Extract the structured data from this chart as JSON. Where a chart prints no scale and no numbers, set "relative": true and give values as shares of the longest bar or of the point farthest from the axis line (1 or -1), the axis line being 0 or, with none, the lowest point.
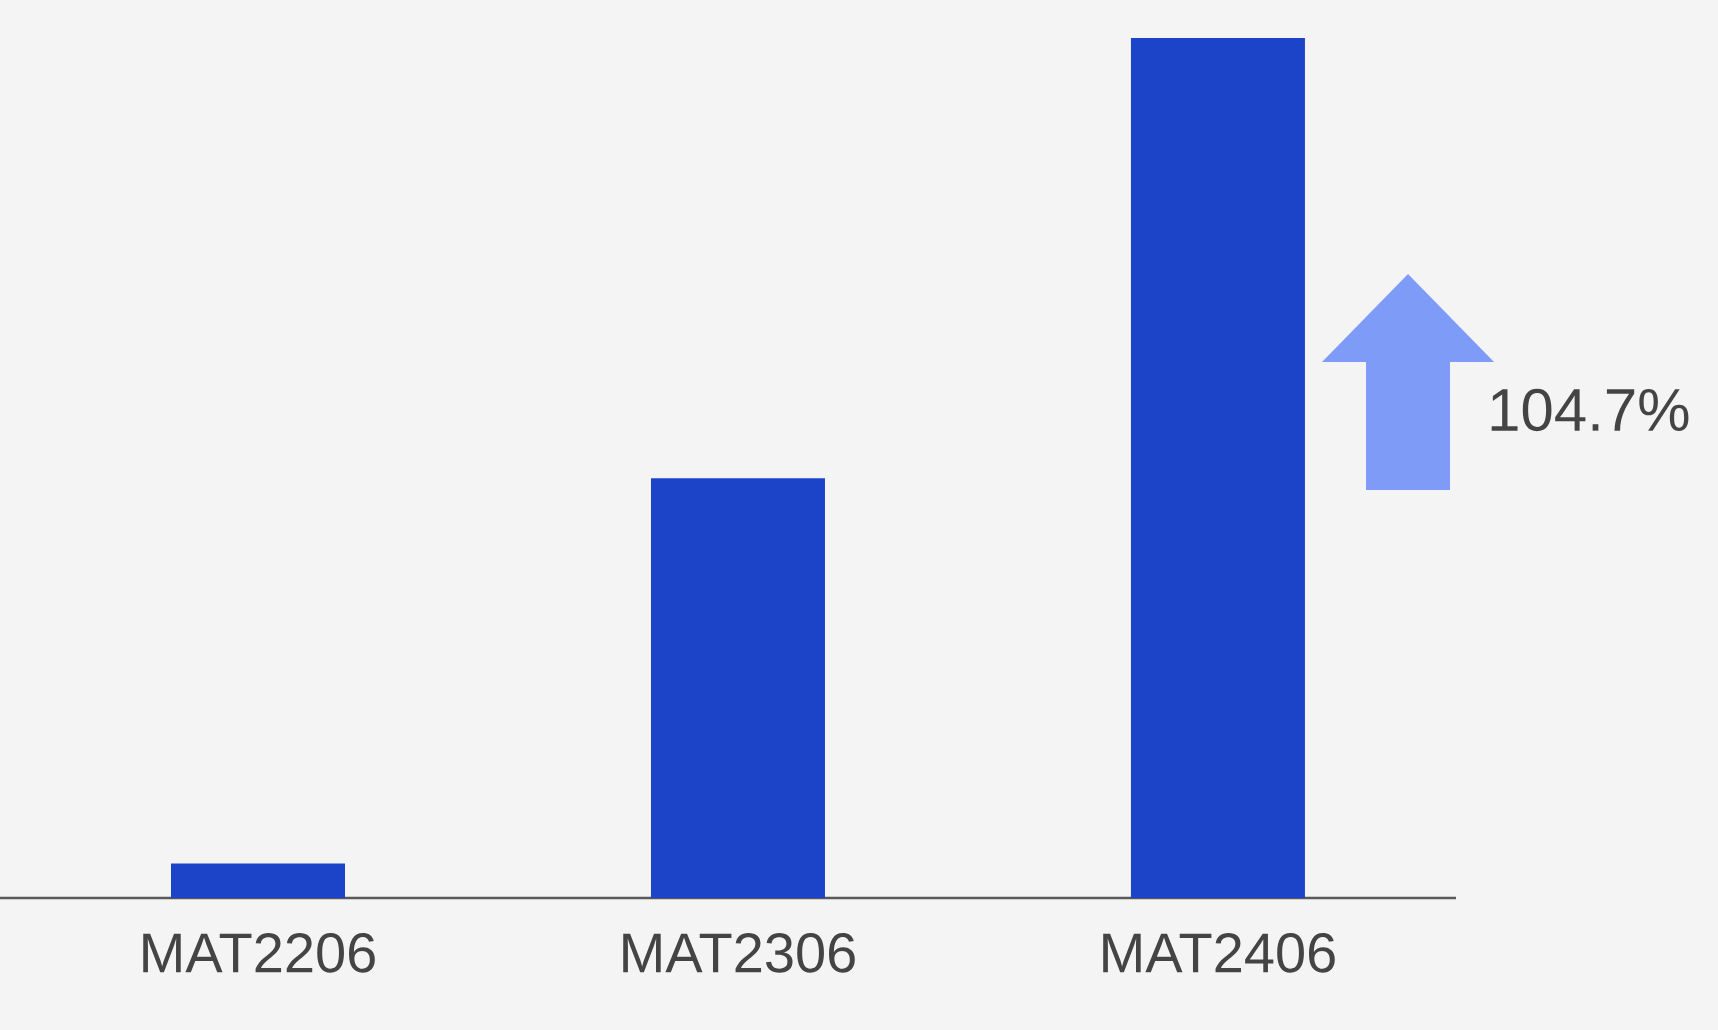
{
  "chart_data": {
    "type": "bar",
    "categories": [
      "MAT2206",
      "MAT2306",
      "MAT2406"
    ],
    "values": [
      0.04,
      0.488,
      1
    ],
    "color": "#1c44c8",
    "relative": true,
    "annotations": [
      "104.7%"
    ]
  }
}
